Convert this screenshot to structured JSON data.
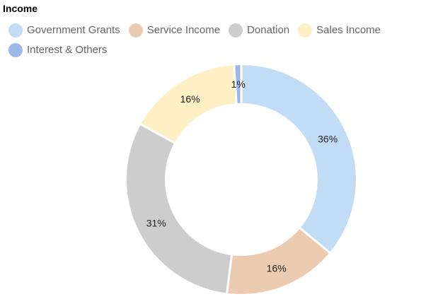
{
  "chart_data": {
    "type": "pie",
    "title": "Income",
    "legend_position": "top-left",
    "categories": [
      "Government Grants",
      "Service Income",
      "Donation",
      "Sales Income",
      "Interest & Others"
    ],
    "values": [
      36,
      16,
      31,
      16,
      1
    ],
    "labels": [
      "36%",
      "16%",
      "31%",
      "16%",
      "1%"
    ],
    "colors": [
      "#c2dcf5",
      "#ecccb1",
      "#cdcdcd",
      "#fdf0c4",
      "#9db7e6"
    ],
    "donut": true
  }
}
